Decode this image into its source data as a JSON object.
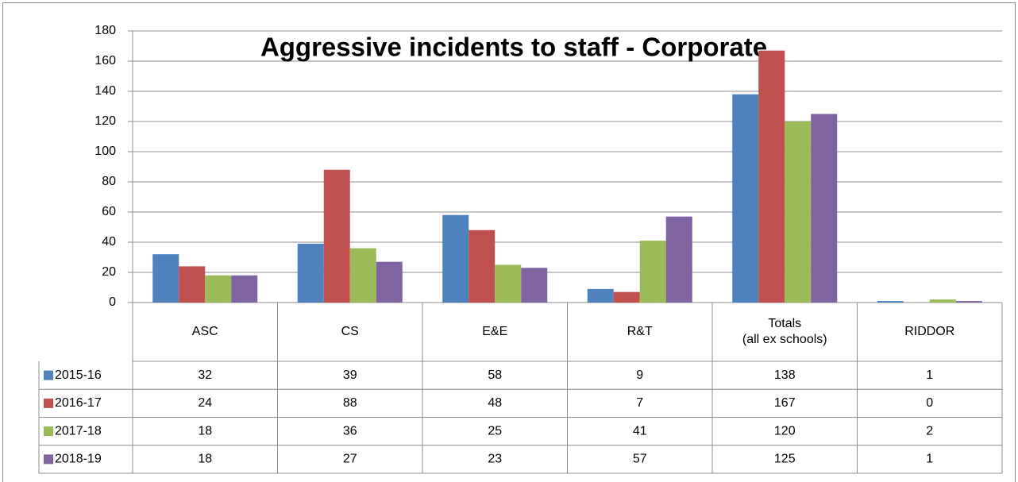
{
  "chart_data": {
    "type": "bar",
    "title": "Aggressive incidents to staff - Corporate",
    "categories": [
      "ASC",
      "CS",
      "E&E",
      "R&T",
      "Totals\n(all ex schools)",
      "RIDDOR"
    ],
    "series": [
      {
        "name": "2015-16",
        "color": "#4f81bd",
        "values": [
          32,
          39,
          58,
          9,
          138,
          1
        ]
      },
      {
        "name": "2016-17",
        "color": "#c0504d",
        "values": [
          24,
          88,
          48,
          7,
          167,
          0
        ]
      },
      {
        "name": "2017-18",
        "color": "#9bbb59",
        "values": [
          18,
          36,
          25,
          41,
          120,
          2
        ]
      },
      {
        "name": "2018-19",
        "color": "#8064a2",
        "values": [
          18,
          27,
          23,
          57,
          125,
          1
        ]
      }
    ],
    "ylim": [
      0,
      180
    ],
    "yticks": [
      0,
      20,
      40,
      60,
      80,
      100,
      120,
      140,
      160,
      180
    ],
    "grid": true,
    "data_table": true
  }
}
